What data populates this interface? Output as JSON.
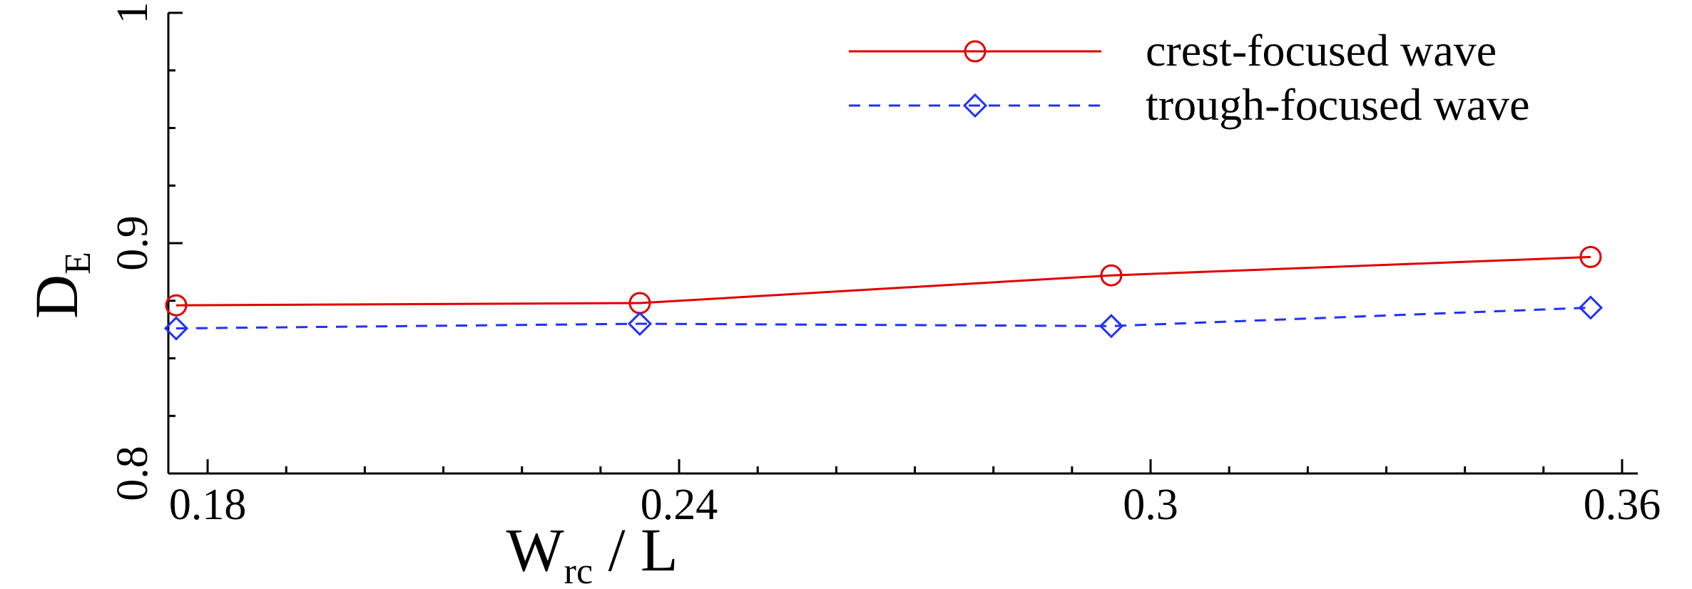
{
  "chart_data": {
    "type": "line",
    "title": "",
    "xlabel": {
      "main": "W",
      "sub": "rc",
      "suffix": " / L"
    },
    "ylabel": {
      "main": "D",
      "sub": "E"
    },
    "xlim": [
      0.175,
      0.362
    ],
    "ylim": [
      0.8,
      1.0
    ],
    "x_ticks": [
      0.18,
      0.24,
      0.3,
      0.36
    ],
    "x_tick_labels": [
      "0.18",
      "0.24",
      "0.3",
      "0.36"
    ],
    "y_ticks": [
      0.8,
      0.9,
      1.0
    ],
    "y_tick_labels": [
      "0.8",
      "0.9",
      "1"
    ],
    "grid": false,
    "legend_position": "top-right",
    "series": [
      {
        "name": "crest-focused wave",
        "color": "#e00000",
        "line_style": "solid",
        "marker": "circle",
        "x": [
          0.176,
          0.235,
          0.295,
          0.356
        ],
        "y": [
          0.873,
          0.874,
          0.886,
          0.894
        ]
      },
      {
        "name": "trough-focused wave",
        "color": "#2030ff",
        "line_style": "dashed",
        "marker": "diamond",
        "x": [
          0.176,
          0.235,
          0.295,
          0.356
        ],
        "y": [
          0.863,
          0.865,
          0.864,
          0.872
        ]
      }
    ]
  }
}
